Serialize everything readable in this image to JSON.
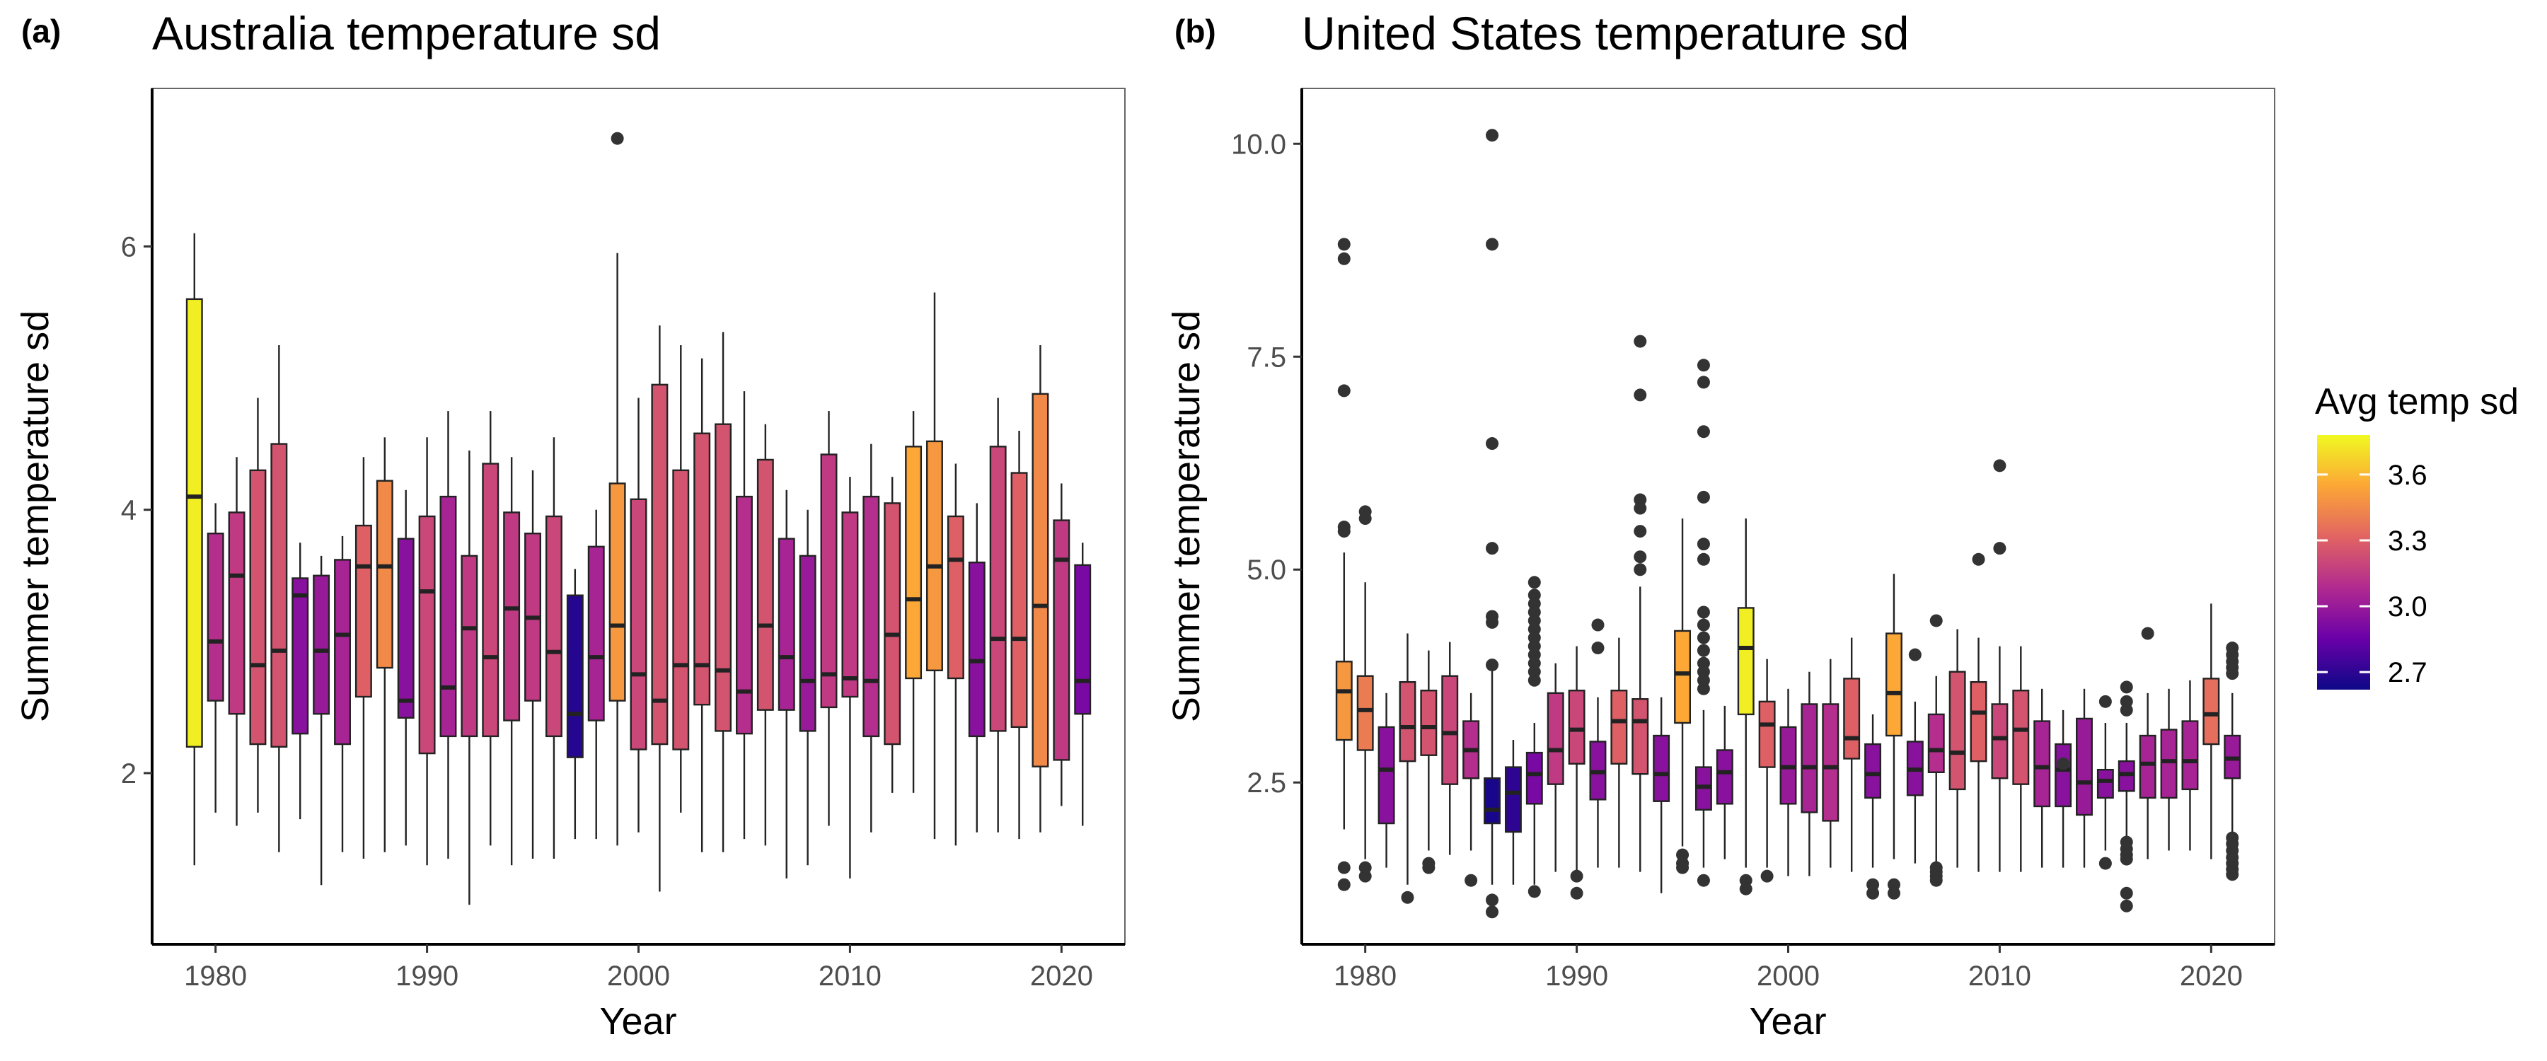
{
  "colors": {
    "low": "#0d0887",
    "mid1": "#6a00a8",
    "mid2": "#b12a90",
    "mid3": "#e16462",
    "mid4": "#fca636",
    "high": "#f0f921",
    "box_stroke": "#222222"
  },
  "legend": {
    "title": "Avg temp sd",
    "ticks": [
      "3.6",
      "3.3",
      "3.0",
      "2.7"
    ],
    "tick_values": [
      3.6,
      3.3,
      3.0,
      2.7
    ],
    "range": [
      2.62,
      3.78
    ]
  },
  "chart_data": [
    {
      "type": "boxplot",
      "panel_label": "(a)",
      "title": "Australia temperature sd",
      "xlabel": "Year",
      "ylabel": "Summer temperature sd",
      "xlim": [
        1977,
        2023
      ],
      "ylim": [
        0.7,
        7.2
      ],
      "xticks": [
        1980,
        1990,
        2000,
        2010,
        2020
      ],
      "yticks": [
        2,
        4,
        6
      ],
      "grid": false,
      "boxes": [
        {
          "x": 1979,
          "q1": 2.2,
          "med": 4.1,
          "q3": 5.6,
          "lo": 1.3,
          "hi": 6.1,
          "c": 3.75
        },
        {
          "x": 1980,
          "q1": 2.55,
          "med": 3.0,
          "q3": 3.82,
          "lo": 1.7,
          "hi": 4.05,
          "c": 3.1
        },
        {
          "x": 1981,
          "q1": 2.45,
          "med": 3.5,
          "q3": 3.98,
          "lo": 1.6,
          "hi": 4.4,
          "c": 3.15
        },
        {
          "x": 1982,
          "q1": 2.22,
          "med": 2.82,
          "q3": 4.3,
          "lo": 1.7,
          "hi": 4.85,
          "c": 3.25
        },
        {
          "x": 1983,
          "q1": 2.2,
          "med": 2.93,
          "q3": 4.5,
          "lo": 1.4,
          "hi": 5.25,
          "c": 3.25
        },
        {
          "x": 1984,
          "q1": 2.3,
          "med": 3.35,
          "q3": 3.48,
          "lo": 1.65,
          "hi": 3.75,
          "c": 2.95
        },
        {
          "x": 1985,
          "q1": 2.45,
          "med": 2.93,
          "q3": 3.5,
          "lo": 1.15,
          "hi": 3.65,
          "c": 3.0
        },
        {
          "x": 1986,
          "q1": 2.22,
          "med": 3.05,
          "q3": 3.62,
          "lo": 1.4,
          "hi": 3.8,
          "c": 3.05
        },
        {
          "x": 1987,
          "q1": 2.58,
          "med": 3.57,
          "q3": 3.88,
          "lo": 1.35,
          "hi": 4.4,
          "c": 3.3
        },
        {
          "x": 1988,
          "q1": 2.8,
          "med": 3.57,
          "q3": 4.22,
          "lo": 1.4,
          "hi": 4.55,
          "c": 3.45
        },
        {
          "x": 1989,
          "q1": 2.42,
          "med": 2.55,
          "q3": 3.78,
          "lo": 1.45,
          "hi": 4.15,
          "c": 2.95
        },
        {
          "x": 1990,
          "q1": 2.15,
          "med": 3.38,
          "q3": 3.95,
          "lo": 1.3,
          "hi": 4.55,
          "c": 3.2
        },
        {
          "x": 1991,
          "q1": 2.28,
          "med": 2.65,
          "q3": 4.1,
          "lo": 1.35,
          "hi": 4.75,
          "c": 3.05
        },
        {
          "x": 1992,
          "q1": 2.28,
          "med": 3.1,
          "q3": 3.65,
          "lo": 1.0,
          "hi": 4.45,
          "c": 3.15
        },
        {
          "x": 1993,
          "q1": 2.28,
          "med": 2.88,
          "q3": 4.35,
          "lo": 1.45,
          "hi": 4.75,
          "c": 3.2
        },
        {
          "x": 1994,
          "q1": 2.4,
          "med": 3.25,
          "q3": 3.98,
          "lo": 1.3,
          "hi": 4.4,
          "c": 3.15
        },
        {
          "x": 1995,
          "q1": 2.55,
          "med": 3.18,
          "q3": 3.82,
          "lo": 1.35,
          "hi": 4.3,
          "c": 3.15
        },
        {
          "x": 1996,
          "q1": 2.28,
          "med": 2.92,
          "q3": 3.95,
          "lo": 1.35,
          "hi": 4.55,
          "c": 3.2
        },
        {
          "x": 1997,
          "q1": 2.12,
          "med": 2.45,
          "q3": 3.35,
          "lo": 1.5,
          "hi": 3.55,
          "c": 2.68
        },
        {
          "x": 1998,
          "q1": 2.4,
          "med": 2.88,
          "q3": 3.72,
          "lo": 1.5,
          "hi": 4.0,
          "c": 3.05
        },
        {
          "x": 1999,
          "q1": 2.55,
          "med": 3.12,
          "q3": 4.2,
          "lo": 1.45,
          "hi": 5.95,
          "c": 3.5,
          "out": [
            6.82
          ]
        },
        {
          "x": 2000,
          "q1": 2.18,
          "med": 2.75,
          "q3": 4.08,
          "lo": 1.55,
          "hi": 4.85,
          "c": 3.2
        },
        {
          "x": 2001,
          "q1": 2.22,
          "med": 2.55,
          "q3": 4.95,
          "lo": 1.1,
          "hi": 5.4,
          "c": 3.25
        },
        {
          "x": 2002,
          "q1": 2.18,
          "med": 2.82,
          "q3": 4.3,
          "lo": 1.7,
          "hi": 5.25,
          "c": 3.25
        },
        {
          "x": 2003,
          "q1": 2.52,
          "med": 2.82,
          "q3": 4.58,
          "lo": 1.4,
          "hi": 5.15,
          "c": 3.25
        },
        {
          "x": 2004,
          "q1": 2.32,
          "med": 2.78,
          "q3": 4.65,
          "lo": 1.4,
          "hi": 5.35,
          "c": 3.25
        },
        {
          "x": 2005,
          "q1": 2.3,
          "med": 2.62,
          "q3": 4.1,
          "lo": 1.5,
          "hi": 4.9,
          "c": 3.1
        },
        {
          "x": 2006,
          "q1": 2.48,
          "med": 3.12,
          "q3": 4.38,
          "lo": 1.45,
          "hi": 4.65,
          "c": 3.25
        },
        {
          "x": 2007,
          "q1": 2.48,
          "med": 2.88,
          "q3": 3.78,
          "lo": 1.2,
          "hi": 4.15,
          "c": 3.05
        },
        {
          "x": 2008,
          "q1": 2.32,
          "med": 2.7,
          "q3": 3.65,
          "lo": 1.3,
          "hi": 4.0,
          "c": 3.0
        },
        {
          "x": 2009,
          "q1": 2.5,
          "med": 2.75,
          "q3": 4.42,
          "lo": 1.6,
          "hi": 4.75,
          "c": 3.15
        },
        {
          "x": 2010,
          "q1": 2.58,
          "med": 2.72,
          "q3": 3.98,
          "lo": 1.2,
          "hi": 4.25,
          "c": 3.15
        },
        {
          "x": 2011,
          "q1": 2.28,
          "med": 2.7,
          "q3": 4.1,
          "lo": 1.55,
          "hi": 4.5,
          "c": 3.1
        },
        {
          "x": 2012,
          "q1": 2.22,
          "med": 3.05,
          "q3": 4.05,
          "lo": 1.85,
          "hi": 4.25,
          "c": 3.25
        },
        {
          "x": 2013,
          "q1": 2.72,
          "med": 3.32,
          "q3": 4.48,
          "lo": 1.85,
          "hi": 4.75,
          "c": 3.55
        },
        {
          "x": 2014,
          "q1": 2.78,
          "med": 3.57,
          "q3": 4.52,
          "lo": 1.5,
          "hi": 5.65,
          "c": 3.5
        },
        {
          "x": 2015,
          "q1": 2.72,
          "med": 3.62,
          "q3": 3.95,
          "lo": 1.45,
          "hi": 4.35,
          "c": 3.3
        },
        {
          "x": 2016,
          "q1": 2.28,
          "med": 2.85,
          "q3": 3.6,
          "lo": 1.55,
          "hi": 4.05,
          "c": 2.95
        },
        {
          "x": 2017,
          "q1": 2.32,
          "med": 3.02,
          "q3": 4.48,
          "lo": 1.55,
          "hi": 4.85,
          "c": 3.2
        },
        {
          "x": 2018,
          "q1": 2.35,
          "med": 3.02,
          "q3": 4.28,
          "lo": 1.5,
          "hi": 4.6,
          "c": 3.3
        },
        {
          "x": 2019,
          "q1": 2.05,
          "med": 3.27,
          "q3": 4.88,
          "lo": 1.55,
          "hi": 5.25,
          "c": 3.45
        },
        {
          "x": 2020,
          "q1": 2.1,
          "med": 3.62,
          "q3": 3.92,
          "lo": 1.75,
          "hi": 4.2,
          "c": 3.15
        },
        {
          "x": 2021,
          "q1": 2.45,
          "med": 2.7,
          "q3": 3.58,
          "lo": 1.6,
          "hi": 3.75,
          "c": 2.9
        }
      ]
    },
    {
      "type": "boxplot",
      "panel_label": "(b)",
      "title": "United States temperature sd",
      "xlabel": "Year",
      "ylabel": "Summer temperature sd",
      "xlim": [
        1977,
        2023
      ],
      "ylim": [
        0.6,
        10.65
      ],
      "xticks": [
        1980,
        1990,
        2000,
        2010,
        2020
      ],
      "yticks": [
        2.5,
        5.0,
        7.5,
        10.0
      ],
      "ytick_labels": [
        "2.5",
        "5.0",
        "7.5",
        "10.0"
      ],
      "grid": false,
      "boxes": [
        {
          "x": 1979,
          "q1": 3.0,
          "med": 3.57,
          "q3": 3.92,
          "lo": 1.95,
          "hi": 5.2,
          "c": 3.5,
          "out": [
            8.82,
            8.65,
            7.1,
            5.5,
            5.45,
            1.5,
            1.3
          ]
        },
        {
          "x": 1980,
          "q1": 2.88,
          "med": 3.35,
          "q3": 3.75,
          "lo": 1.6,
          "hi": 4.85,
          "c": 3.4,
          "out": [
            5.68,
            5.6,
            1.5,
            1.4
          ]
        },
        {
          "x": 1981,
          "q1": 2.02,
          "med": 2.65,
          "q3": 3.15,
          "lo": 1.5,
          "hi": 3.55,
          "c": 2.95
        },
        {
          "x": 1982,
          "q1": 2.75,
          "med": 3.15,
          "q3": 3.68,
          "lo": 1.3,
          "hi": 4.25,
          "c": 3.25,
          "out": [
            1.15
          ]
        },
        {
          "x": 1983,
          "q1": 2.82,
          "med": 3.15,
          "q3": 3.58,
          "lo": 1.7,
          "hi": 4.05,
          "c": 3.25,
          "out": [
            1.55,
            1.5
          ]
        },
        {
          "x": 1984,
          "q1": 2.48,
          "med": 3.08,
          "q3": 3.75,
          "lo": 1.65,
          "hi": 4.15,
          "c": 3.2
        },
        {
          "x": 1985,
          "q1": 2.55,
          "med": 2.88,
          "q3": 3.22,
          "lo": 1.7,
          "hi": 3.55,
          "c": 3.1,
          "out": [
            1.35
          ]
        },
        {
          "x": 1986,
          "q1": 2.02,
          "med": 2.18,
          "q3": 2.55,
          "lo": 1.3,
          "hi": 3.85,
          "c": 2.65,
          "out": [
            10.1,
            8.82,
            6.48,
            5.25,
            4.45,
            4.38,
            3.88,
            1.12,
            0.98
          ]
        },
        {
          "x": 1987,
          "q1": 1.92,
          "med": 2.38,
          "q3": 2.68,
          "lo": 1.3,
          "hi": 3.0,
          "c": 2.7
        },
        {
          "x": 1988,
          "q1": 2.25,
          "med": 2.6,
          "q3": 2.85,
          "lo": 1.3,
          "hi": 3.2,
          "c": 2.9,
          "out": [
            4.85,
            4.7,
            4.6,
            4.5,
            4.4,
            4.3,
            4.2,
            4.1,
            4.0,
            3.9,
            3.8,
            3.7,
            1.22
          ]
        },
        {
          "x": 1989,
          "q1": 2.48,
          "med": 2.88,
          "q3": 3.55,
          "lo": 1.45,
          "hi": 3.9,
          "c": 3.15
        },
        {
          "x": 1990,
          "q1": 2.72,
          "med": 3.12,
          "q3": 3.58,
          "lo": 1.45,
          "hi": 4.1,
          "c": 3.2,
          "out": [
            1.4,
            1.2
          ]
        },
        {
          "x": 1991,
          "q1": 2.3,
          "med": 2.62,
          "q3": 2.98,
          "lo": 1.5,
          "hi": 3.5,
          "c": 2.95,
          "out": [
            4.35,
            4.08
          ]
        },
        {
          "x": 1992,
          "q1": 2.72,
          "med": 3.22,
          "q3": 3.58,
          "lo": 1.5,
          "hi": 4.2,
          "c": 3.3
        },
        {
          "x": 1993,
          "q1": 2.6,
          "med": 3.22,
          "q3": 3.48,
          "lo": 1.45,
          "hi": 4.8,
          "c": 3.25,
          "out": [
            7.68,
            7.05,
            5.82,
            5.72,
            5.45,
            5.15,
            5.0
          ]
        },
        {
          "x": 1994,
          "q1": 2.28,
          "med": 2.6,
          "q3": 3.05,
          "lo": 1.2,
          "hi": 3.5,
          "c": 2.95
        },
        {
          "x": 1995,
          "q1": 3.2,
          "med": 3.78,
          "q3": 4.28,
          "lo": 1.75,
          "hi": 5.6,
          "c": 3.55,
          "out": [
            1.65,
            1.55,
            1.5
          ]
        },
        {
          "x": 1996,
          "q1": 2.18,
          "med": 2.45,
          "q3": 2.68,
          "lo": 1.5,
          "hi": 3.35,
          "c": 2.95,
          "out": [
            7.4,
            7.2,
            6.62,
            5.85,
            5.3,
            5.12,
            4.5,
            4.35,
            4.2,
            4.05,
            3.9,
            3.8,
            3.7,
            3.6,
            1.35
          ]
        },
        {
          "x": 1997,
          "q1": 2.25,
          "med": 2.62,
          "q3": 2.88,
          "lo": 1.6,
          "hi": 3.4,
          "c": 2.95
        },
        {
          "x": 1998,
          "q1": 3.3,
          "med": 4.08,
          "q3": 4.55,
          "lo": 1.5,
          "hi": 5.6,
          "c": 3.75,
          "out": [
            1.35,
            1.25
          ]
        },
        {
          "x": 1999,
          "q1": 2.68,
          "med": 3.18,
          "q3": 3.45,
          "lo": 1.5,
          "hi": 3.95,
          "c": 3.3,
          "out": [
            1.4
          ]
        },
        {
          "x": 2000,
          "q1": 2.25,
          "med": 2.68,
          "q3": 3.15,
          "lo": 1.4,
          "hi": 3.6,
          "c": 3.0
        },
        {
          "x": 2001,
          "q1": 2.15,
          "med": 2.68,
          "q3": 3.42,
          "lo": 1.4,
          "hi": 3.8,
          "c": 3.05
        },
        {
          "x": 2002,
          "q1": 2.05,
          "med": 2.68,
          "q3": 3.42,
          "lo": 1.5,
          "hi": 3.95,
          "c": 3.1
        },
        {
          "x": 2003,
          "q1": 2.78,
          "med": 3.02,
          "q3": 3.72,
          "lo": 1.45,
          "hi": 4.2,
          "c": 3.3
        },
        {
          "x": 2004,
          "q1": 2.32,
          "med": 2.6,
          "q3": 2.95,
          "lo": 1.5,
          "hi": 3.3,
          "c": 2.95,
          "out": [
            1.3,
            1.2
          ]
        },
        {
          "x": 2005,
          "q1": 3.05,
          "med": 3.55,
          "q3": 4.25,
          "lo": 1.6,
          "hi": 4.95,
          "c": 3.55,
          "out": [
            1.3,
            1.2
          ]
        },
        {
          "x": 2006,
          "q1": 2.35,
          "med": 2.65,
          "q3": 2.98,
          "lo": 1.55,
          "hi": 3.45,
          "c": 2.95,
          "out": [
            4.0
          ]
        },
        {
          "x": 2007,
          "q1": 2.62,
          "med": 2.88,
          "q3": 3.3,
          "lo": 1.55,
          "hi": 3.75,
          "c": 3.1,
          "out": [
            4.4,
            1.5,
            1.45,
            1.4,
            1.35
          ]
        },
        {
          "x": 2008,
          "q1": 2.42,
          "med": 2.85,
          "q3": 3.8,
          "lo": 1.5,
          "hi": 4.3,
          "c": 3.25
        },
        {
          "x": 2009,
          "q1": 2.75,
          "med": 3.32,
          "q3": 3.68,
          "lo": 1.45,
          "hi": 4.2,
          "c": 3.3,
          "out": [
            5.12
          ]
        },
        {
          "x": 2010,
          "q1": 2.55,
          "med": 3.02,
          "q3": 3.42,
          "lo": 1.45,
          "hi": 4.1,
          "c": 3.2,
          "out": [
            6.22,
            5.25
          ]
        },
        {
          "x": 2011,
          "q1": 2.48,
          "med": 3.12,
          "q3": 3.58,
          "lo": 1.45,
          "hi": 4.1,
          "c": 3.25
        },
        {
          "x": 2012,
          "q1": 2.22,
          "med": 2.68,
          "q3": 3.22,
          "lo": 1.5,
          "hi": 3.6,
          "c": 3.05
        },
        {
          "x": 2013,
          "q1": 2.22,
          "med": 2.65,
          "q3": 2.95,
          "lo": 1.5,
          "hi": 3.35,
          "c": 2.95,
          "out": [
            2.72
          ]
        },
        {
          "x": 2014,
          "q1": 2.12,
          "med": 2.5,
          "q3": 3.25,
          "lo": 1.5,
          "hi": 3.6,
          "c": 3.0
        },
        {
          "x": 2015,
          "q1": 2.32,
          "med": 2.52,
          "q3": 2.65,
          "lo": 1.7,
          "hi": 3.2,
          "c": 2.95,
          "out": [
            3.45,
            1.55
          ]
        },
        {
          "x": 2016,
          "q1": 2.4,
          "med": 2.6,
          "q3": 2.75,
          "lo": 1.8,
          "hi": 3.2,
          "c": 2.95,
          "out": [
            3.62,
            3.45,
            3.35,
            1.8,
            1.72,
            1.65,
            1.6,
            1.2,
            1.05
          ]
        },
        {
          "x": 2017,
          "q1": 2.32,
          "med": 2.72,
          "q3": 3.05,
          "lo": 1.6,
          "hi": 3.55,
          "c": 3.05,
          "out": [
            4.25
          ]
        },
        {
          "x": 2018,
          "q1": 2.32,
          "med": 2.75,
          "q3": 3.12,
          "lo": 1.7,
          "hi": 3.6,
          "c": 3.05
        },
        {
          "x": 2019,
          "q1": 2.42,
          "med": 2.75,
          "q3": 3.22,
          "lo": 1.7,
          "hi": 3.7,
          "c": 3.05
        },
        {
          "x": 2020,
          "q1": 2.95,
          "med": 3.3,
          "q3": 3.72,
          "lo": 1.6,
          "hi": 4.6,
          "c": 3.35
        },
        {
          "x": 2021,
          "q1": 2.55,
          "med": 2.78,
          "q3": 3.05,
          "lo": 1.9,
          "hi": 3.55,
          "c": 3.0,
          "out": [
            4.08,
            4.0,
            3.92,
            3.85,
            3.78,
            1.85,
            1.78,
            1.7,
            1.62,
            1.55,
            1.48,
            1.42
          ]
        }
      ]
    }
  ]
}
